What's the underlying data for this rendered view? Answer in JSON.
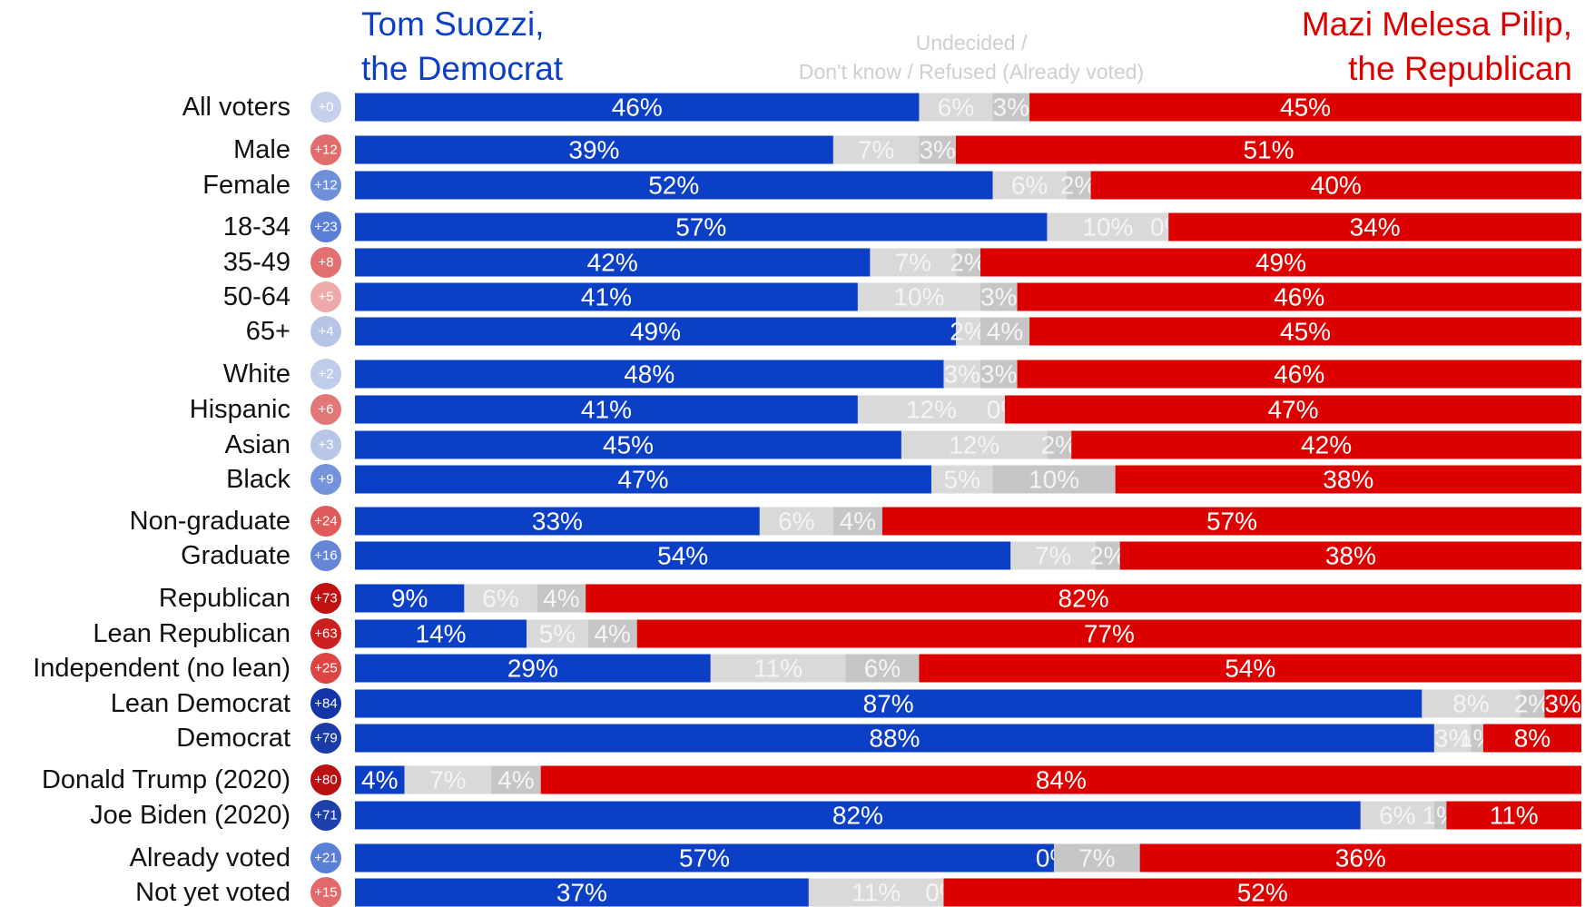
{
  "chart_data": {
    "type": "stacked_barh",
    "categories": [
      "All voters",
      "Male",
      "Female",
      "18-34",
      "35-49",
      "50-64",
      "65+",
      "White",
      "Hispanic",
      "Asian",
      "Black",
      "Non-graduate",
      "Graduate",
      "Republican",
      "Lean Republican",
      "Independent (no lean)",
      "Lean Democrat",
      "Democrat",
      "Donald Trump (2020)",
      "Joe Biden (2020)",
      "Already voted",
      "Not yet voted"
    ],
    "margins": [
      "+0",
      "+12",
      "+12",
      "+23",
      "+8",
      "+5",
      "+4",
      "+2",
      "+6",
      "+3",
      "+9",
      "+24",
      "+16",
      "+73",
      "+63",
      "+25",
      "+84",
      "+79",
      "+80",
      "+71",
      "+21",
      "+15"
    ],
    "margin_colors": [
      "#c5d0ea",
      "#e06c6c",
      "#6f8fd8",
      "#5a7fd4",
      "#e27070",
      "#eeaaaa",
      "#b6c4e8",
      "#c0cdea",
      "#e27777",
      "#b8c6e8",
      "#7593da",
      "#df5b5b",
      "#6585d6",
      "#c01010",
      "#cc2020",
      "#dd4444",
      "#1335a8",
      "#1a3ca8",
      "#bb1010",
      "#1e40aa",
      "#5b7fd4",
      "#e26a6a"
    ],
    "series": [
      {
        "name": "Tom Suozzi, the Democrat",
        "color": "#0b3fc6",
        "label_color": "#ffffff",
        "values": [
          46,
          39,
          52,
          57,
          42,
          41,
          49,
          48,
          41,
          45,
          47,
          33,
          54,
          9,
          14,
          29,
          87,
          88,
          4,
          82,
          57,
          37
        ],
        "value_labels": [
          "46%",
          "39%",
          "52%",
          "57%",
          "42%",
          "41%",
          "49%",
          "48%",
          "41%",
          "45%",
          "47%",
          "33%",
          "54%",
          "9%",
          "14%",
          "29%",
          "87%",
          "88%",
          "4%",
          "82%",
          "57%",
          "37%"
        ]
      },
      {
        "name": "Undecided /",
        "color": "#d9d9d9",
        "label_color": "#f4f4f4",
        "values": [
          6,
          7,
          6,
          10,
          7,
          10,
          2,
          3,
          12,
          12,
          5,
          6,
          7,
          6,
          5,
          11,
          8,
          3,
          7,
          6,
          0,
          11
        ],
        "value_labels": [
          "6%",
          "7%",
          "6%",
          "10%",
          "7%",
          "10%",
          "2%",
          "3%",
          "12%",
          "12%",
          "5%",
          "6%",
          "7%",
          "6%",
          "5%",
          "11%",
          "8%",
          "3%",
          "7%",
          "6%",
          "0%",
          "11%"
        ]
      },
      {
        "name": "Don't know / Refused (Already voted)",
        "color": "#c6c6c6",
        "label_color": "#f4f4f4",
        "values": [
          3,
          3,
          2,
          0,
          2,
          3,
          4,
          3,
          0,
          2,
          10,
          4,
          2,
          4,
          4,
          6,
          2,
          1,
          4,
          1,
          7,
          0
        ],
        "value_labels": [
          "3%",
          "3%",
          "2%",
          "0%",
          "2%",
          "3%",
          "4%",
          "3%",
          "0%",
          "2%",
          "10%",
          "4%",
          "2%",
          "4%",
          "4%",
          "6%",
          "2%",
          "1%",
          "4%",
          "1%",
          "7%",
          "0%"
        ]
      },
      {
        "name": "Mazi Melesa Pilip, the Republican",
        "color": "#dd0000",
        "label_color": "#ffffff",
        "values": [
          45,
          51,
          40,
          34,
          49,
          46,
          45,
          46,
          47,
          42,
          38,
          57,
          38,
          82,
          77,
          54,
          3,
          8,
          84,
          11,
          36,
          52
        ],
        "value_labels": [
          "45%",
          "51%",
          "40%",
          "34%",
          "49%",
          "46%",
          "45%",
          "46%",
          "47%",
          "42%",
          "38%",
          "57%",
          "38%",
          "82%",
          "77%",
          "54%",
          "3%",
          "8%",
          "84%",
          "11%",
          "36%",
          "52%"
        ]
      }
    ]
  }
}
